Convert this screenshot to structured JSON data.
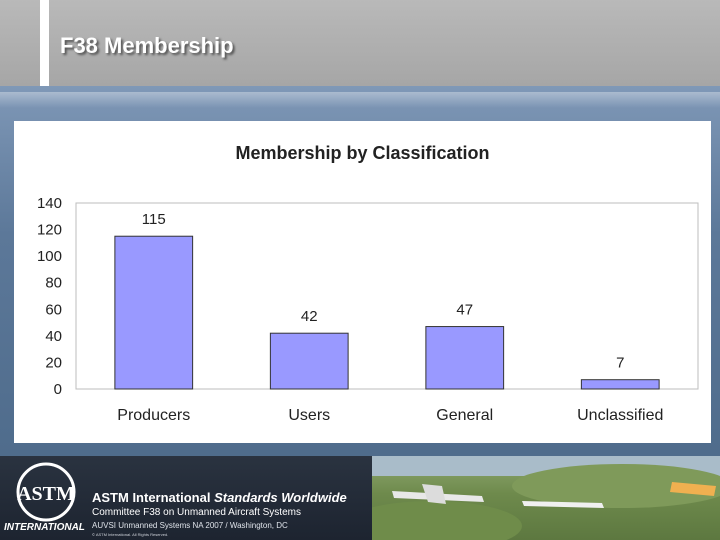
{
  "slide": {
    "title": "F38 Membership"
  },
  "chart_data": {
    "type": "bar",
    "title": "Membership by Classification",
    "categories": [
      "Producers",
      "Users",
      "General",
      "Unclassified"
    ],
    "values": [
      115,
      42,
      47,
      7
    ],
    "yticks": [
      0,
      20,
      40,
      60,
      80,
      100,
      120,
      140
    ],
    "ylim": [
      0,
      140
    ],
    "bar_color": "#9999ff",
    "grid": false,
    "legend": "none"
  },
  "footer": {
    "org": "ASTM International",
    "tagline": "Standards Worldwide",
    "committee": "Committee F38 on Unmanned Aircraft Systems",
    "event": "AUVSI Unmanned Systems NA 2007 / Washington, DC",
    "copyright": "© ASTM International. All Rights Reserved.",
    "logo_text": "ASTM",
    "logo_sub": "INTERNATIONAL"
  }
}
